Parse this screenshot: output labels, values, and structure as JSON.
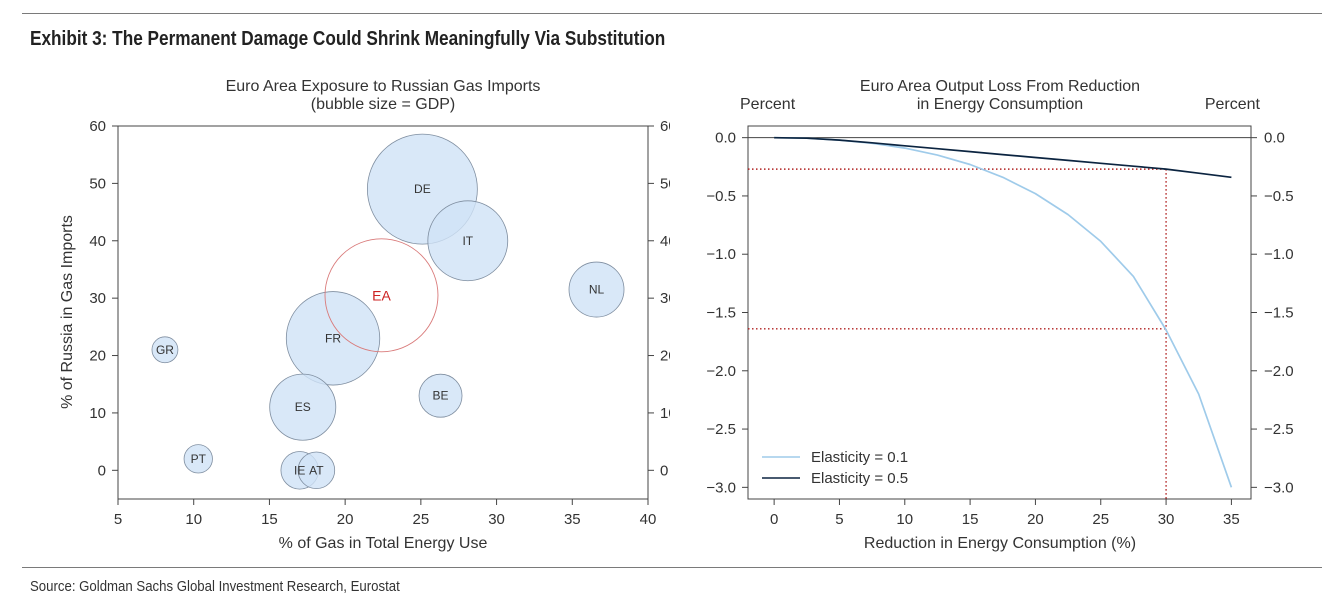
{
  "exhibit_title": "Exhibit 3: The Permanent Damage Could Shrink Meaningfully Via Substitution",
  "source": "Source: Goldman Sachs Global Investment Research, Eurostat",
  "colors": {
    "bubble_fill": "#cfe2f6",
    "bubble_stroke": "#7f8ea0",
    "ea_ring": "#d97a7a",
    "ea_label": "#cc2222",
    "light_line": "#9fcbea",
    "dark_line": "#0b2440",
    "ref_line": "#b02020"
  },
  "chart_data": [
    {
      "type": "scatter",
      "title_line1": "Euro Area Exposure to Russian Gas Imports",
      "title_line2": "(bubble size = GDP)",
      "xlabel": "% of Gas in Total Energy Use",
      "ylabel": "% of Russia in Gas Imports",
      "xlim": [
        5,
        40
      ],
      "ylim": [
        -5,
        60
      ],
      "xticks": [
        5,
        10,
        15,
        20,
        25,
        30,
        35,
        40
      ],
      "yticks": [
        0,
        10,
        20,
        30,
        40,
        50,
        60
      ],
      "points": [
        {
          "label": "DE",
          "x": 25.1,
          "y": 49,
          "size": 3.6
        },
        {
          "label": "IT",
          "x": 28.1,
          "y": 40,
          "size": 1.9
        },
        {
          "label": "FR",
          "x": 19.2,
          "y": 23,
          "size": 2.6
        },
        {
          "label": "ES",
          "x": 17.2,
          "y": 11,
          "size": 1.3
        },
        {
          "label": "NL",
          "x": 36.6,
          "y": 31.5,
          "size": 0.9
        },
        {
          "label": "BE",
          "x": 26.3,
          "y": 13,
          "size": 0.55
        },
        {
          "label": "GR",
          "x": 8.1,
          "y": 21,
          "size": 0.2
        },
        {
          "label": "PT",
          "x": 10.3,
          "y": 2,
          "size": 0.24
        },
        {
          "label": "IE",
          "x": 17.0,
          "y": 0,
          "size": 0.42
        },
        {
          "label": "AT",
          "x": 18.1,
          "y": 0,
          "size": 0.4
        }
      ],
      "aggregate": {
        "label": "EA",
        "x": 22.4,
        "y": 30.5
      }
    },
    {
      "type": "line",
      "title_line1": "Euro Area Output Loss From Reduction",
      "title_line2": "in Energy Consumption",
      "left_unit": "Percent",
      "right_unit": "Percent",
      "xlabel": "Reduction in Energy Consumption (%)",
      "xlim": [
        -2,
        36.5
      ],
      "ylim": [
        -3.1,
        0.1
      ],
      "xticks": [
        0,
        5,
        10,
        15,
        20,
        25,
        30,
        35
      ],
      "yticks": [
        0.0,
        -0.5,
        -1.0,
        -1.5,
        -2.0,
        -2.5,
        -3.0
      ],
      "ytick_labels": [
        "0.0",
        "−0.5",
        "−1.0",
        "−1.5",
        "−2.0",
        "−2.5",
        "−3.0"
      ],
      "x": [
        0,
        2.5,
        5,
        7.5,
        10,
        12.5,
        15,
        17.5,
        20,
        22.5,
        25,
        27.5,
        30,
        32.5,
        35
      ],
      "series": [
        {
          "name": "Elasticity = 0.1",
          "values": [
            0,
            -0.005,
            -0.021,
            -0.048,
            -0.09,
            -0.15,
            -0.23,
            -0.34,
            -0.48,
            -0.66,
            -0.89,
            -1.19,
            -1.65,
            -2.2,
            -3.0
          ]
        },
        {
          "name": "Elasticity = 0.5",
          "values": [
            0,
            -0.005,
            -0.021,
            -0.044,
            -0.07,
            -0.095,
            -0.12,
            -0.145,
            -0.17,
            -0.195,
            -0.22,
            -0.245,
            -0.27,
            -0.305,
            -0.34
          ]
        }
      ],
      "reference_x": 30,
      "reference_y": [
        -0.27,
        -1.64
      ],
      "legend_position": "bottom-left"
    }
  ]
}
